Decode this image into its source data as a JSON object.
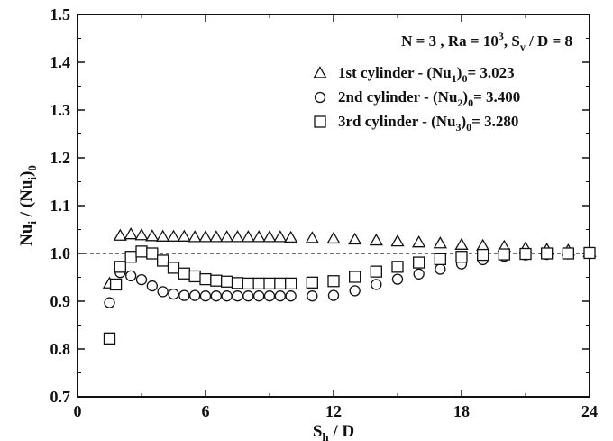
{
  "chart_data": {
    "type": "scatter",
    "condition": {
      "prefix": "N = 3 , Ra = 10",
      "sup": "3",
      "mid": ", S",
      "sub": "v",
      "suffix": " / D = 8"
    },
    "xlabel": {
      "main": "S",
      "sub": "h",
      "rest": " / D"
    },
    "ylabel": {
      "a": "Nu",
      "asub": "i",
      "b": " / (Nu",
      "bsub": "i",
      "c": ")",
      "csub": "0"
    },
    "xlim": [
      0,
      24
    ],
    "ylim": [
      0.7,
      1.5
    ],
    "xticks": [
      0,
      6,
      12,
      18,
      24
    ],
    "yticks": [
      0.7,
      0.8,
      0.9,
      1.0,
      1.1,
      1.2,
      1.3,
      1.4,
      1.5
    ],
    "ytick_labels": [
      "0.7",
      "0.8",
      "0.9",
      "1.0",
      "1.1",
      "1.2",
      "1.3",
      "1.4",
      "1.5"
    ],
    "reference_line": 1.0,
    "grid": false,
    "legend_position": "top-right",
    "colors": {
      "marker": "#111111",
      "reference": "#222222"
    },
    "series": [
      {
        "name": "1st cylinder",
        "legend_pre": "1st cylinder   - (Nu",
        "legend_sub1": "1",
        "legend_mid": ")",
        "legend_sub2": "0",
        "legend_post": "= 3.023",
        "marker": "triangle",
        "x": [
          1.5,
          2,
          2.5,
          3,
          3.5,
          4,
          4.5,
          5,
          5.5,
          6,
          6.5,
          7,
          7.5,
          8,
          8.5,
          9,
          9.5,
          10,
          11,
          12,
          13,
          14,
          15,
          16,
          17,
          18,
          19,
          20,
          21,
          22,
          23,
          24
        ],
        "y": [
          0.937,
          1.037,
          1.04,
          1.038,
          1.036,
          1.035,
          1.035,
          1.035,
          1.034,
          1.034,
          1.034,
          1.034,
          1.034,
          1.034,
          1.034,
          1.034,
          1.034,
          1.033,
          1.032,
          1.031,
          1.029,
          1.027,
          1.025,
          1.023,
          1.021,
          1.018,
          1.016,
          1.014,
          1.011,
          1.008,
          1.006,
          1.003
        ]
      },
      {
        "name": "2nd cylinder",
        "legend_pre": "2nd cylinder - (Nu",
        "legend_sub1": "2",
        "legend_mid": ")",
        "legend_sub2": "0",
        "legend_post": "= 3.400",
        "marker": "circle",
        "x": [
          1.5,
          2,
          2.5,
          3,
          3.5,
          4,
          4.5,
          5,
          5.5,
          6,
          6.5,
          7,
          7.5,
          8,
          8.5,
          9,
          9.5,
          10,
          11,
          12,
          13,
          14,
          15,
          16,
          17,
          18,
          19,
          20,
          21,
          22,
          23,
          24
        ],
        "y": [
          0.897,
          0.96,
          0.953,
          0.945,
          0.932,
          0.92,
          0.915,
          0.912,
          0.912,
          0.911,
          0.911,
          0.911,
          0.911,
          0.911,
          0.911,
          0.911,
          0.911,
          0.911,
          0.911,
          0.912,
          0.922,
          0.935,
          0.946,
          0.957,
          0.967,
          0.978,
          0.987,
          0.994,
          0.997,
          0.998,
          0.999,
          1.0
        ]
      },
      {
        "name": "3rd cylinder",
        "legend_pre": "3rd cylinder  - (Nu",
        "legend_sub1": "3",
        "legend_mid": ")",
        "legend_sub2": "0",
        "legend_post": "= 3.280",
        "marker": "square",
        "x": [
          1.5,
          1.8,
          2,
          2.5,
          3,
          3.5,
          4,
          4.5,
          5,
          5.5,
          6,
          6.5,
          7,
          7.5,
          8,
          8.5,
          9,
          9.5,
          10,
          11,
          12,
          13,
          14,
          15,
          16,
          17,
          18,
          19,
          20,
          21,
          22,
          23,
          24
        ],
        "y": [
          0.822,
          0.935,
          0.972,
          0.993,
          1.004,
          1.0,
          0.985,
          0.97,
          0.958,
          0.952,
          0.946,
          0.943,
          0.941,
          0.938,
          0.937,
          0.937,
          0.937,
          0.937,
          0.937,
          0.939,
          0.942,
          0.951,
          0.962,
          0.972,
          0.981,
          0.988,
          0.993,
          0.997,
          0.998,
          0.999,
          1.0,
          1.0,
          1.001
        ]
      }
    ]
  }
}
